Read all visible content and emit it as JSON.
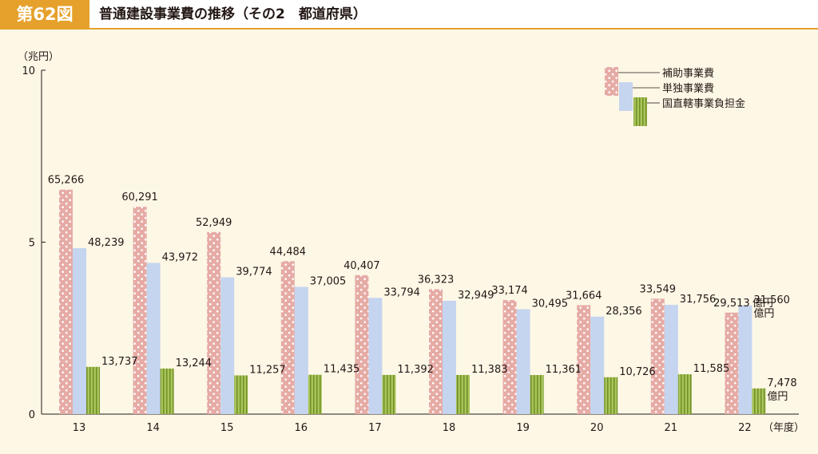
{
  "header": {
    "figure_number": "第62図",
    "title": "普通建設事業費の推移（その2　都道府県）"
  },
  "colors": {
    "accent": "#e5a12b",
    "subsidized": "#e6aba5",
    "independent": "#c5d4ef",
    "national": "#a8c45a"
  },
  "chart_data": {
    "type": "bar",
    "ylabel": "（兆円）",
    "xlabel": "（年度）",
    "ylim": [
      0,
      10
    ],
    "yticks": [
      "0",
      "5",
      "10"
    ],
    "categories": [
      "13",
      "14",
      "15",
      "16",
      "17",
      "18",
      "19",
      "20",
      "21",
      "22"
    ],
    "series": [
      {
        "name": "補助事業費",
        "values": [
          65266,
          60291,
          52949,
          44484,
          40407,
          36323,
          33174,
          31664,
          33549,
          29513
        ],
        "labels": [
          "65,266",
          "60,291",
          "52,949",
          "44,484",
          "40,407",
          "36,323",
          "33,174",
          "31,664",
          "33,549",
          "29,513"
        ]
      },
      {
        "name": "単独事業費",
        "values": [
          48239,
          43972,
          39774,
          37005,
          33794,
          32949,
          30495,
          28356,
          31756,
          31560
        ],
        "labels": [
          "48,239",
          "43,972",
          "39,774",
          "37,005",
          "33,794",
          "32,949",
          "30,495",
          "28,356",
          "31,756",
          "31,560"
        ]
      },
      {
        "name": "国直轄事業負担金",
        "values": [
          13737,
          13244,
          11257,
          11435,
          11392,
          11383,
          11361,
          10726,
          11585,
          7478
        ],
        "labels": [
          "13,737",
          "13,244",
          "11,257",
          "11,435",
          "11,392",
          "11,383",
          "11,361",
          "10,726",
          "11,585",
          "7,478"
        ]
      }
    ],
    "unit_suffix": "億円",
    "legend": "top-right",
    "grid": false
  }
}
